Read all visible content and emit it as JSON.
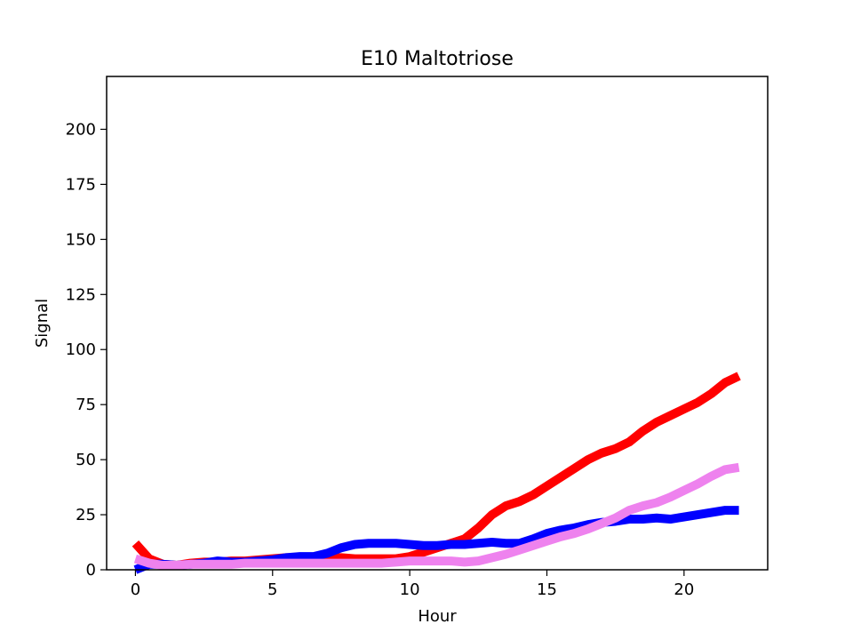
{
  "chart_data": {
    "type": "line",
    "title": "E10 Maltotriose",
    "xlabel": "Hour",
    "ylabel": "Signal",
    "xlim": [
      -1.05,
      23.05
    ],
    "ylim": [
      0,
      224
    ],
    "xticks": [
      0,
      5,
      10,
      15,
      20
    ],
    "yticks": [
      0,
      25,
      50,
      75,
      100,
      125,
      150,
      175,
      200
    ],
    "x": [
      0,
      0.5,
      1,
      1.5,
      2,
      2.5,
      3,
      3.5,
      4,
      4.5,
      5,
      5.5,
      6,
      6.5,
      7,
      7.5,
      8,
      8.5,
      9,
      9.5,
      10,
      10.5,
      11,
      11.5,
      12,
      12.5,
      13,
      13.5,
      14,
      14.5,
      15,
      15.5,
      16,
      16.5,
      17,
      17.5,
      18,
      18.5,
      19,
      19.5,
      20,
      20.5,
      21,
      21.5,
      22
    ],
    "series": [
      {
        "color": "#ff0000",
        "values": [
          12,
          5,
          2.5,
          2,
          3,
          3.5,
          3.5,
          4,
          4,
          4.5,
          5,
          5.5,
          5.5,
          5.5,
          5.5,
          5.5,
          5,
          5,
          5,
          5,
          6,
          8,
          10,
          12,
          14,
          19,
          25,
          29,
          31,
          34,
          38,
          42,
          46,
          50,
          53,
          55,
          58,
          63,
          67,
          70,
          73,
          76,
          80,
          85,
          88
        ]
      },
      {
        "color": "#0000ff",
        "values": [
          0,
          2.5,
          2.5,
          2,
          2.5,
          3,
          4,
          3.5,
          3.5,
          4,
          4.5,
          5.5,
          6,
          6,
          7.5,
          10,
          11.5,
          12,
          12,
          12,
          11.5,
          11,
          11,
          11.5,
          11.5,
          12,
          12.5,
          12,
          12,
          14,
          16.5,
          18,
          19,
          20.5,
          21.5,
          22,
          23,
          23,
          23.5,
          23,
          24,
          25,
          26,
          27,
          27
        ]
      },
      {
        "color": "#ee82ee",
        "values": [
          5,
          3,
          2,
          2,
          2.5,
          2.5,
          2.5,
          2.5,
          3,
          3,
          3,
          3,
          3,
          3,
          3,
          3,
          3,
          3,
          3,
          3.5,
          4,
          4,
          4,
          4,
          3.5,
          4,
          5.5,
          7,
          9,
          11,
          13,
          15,
          16.5,
          18.5,
          21,
          23.5,
          27,
          29,
          30.5,
          33,
          36,
          39,
          42.5,
          45.5,
          46.5
        ]
      }
    ]
  }
}
